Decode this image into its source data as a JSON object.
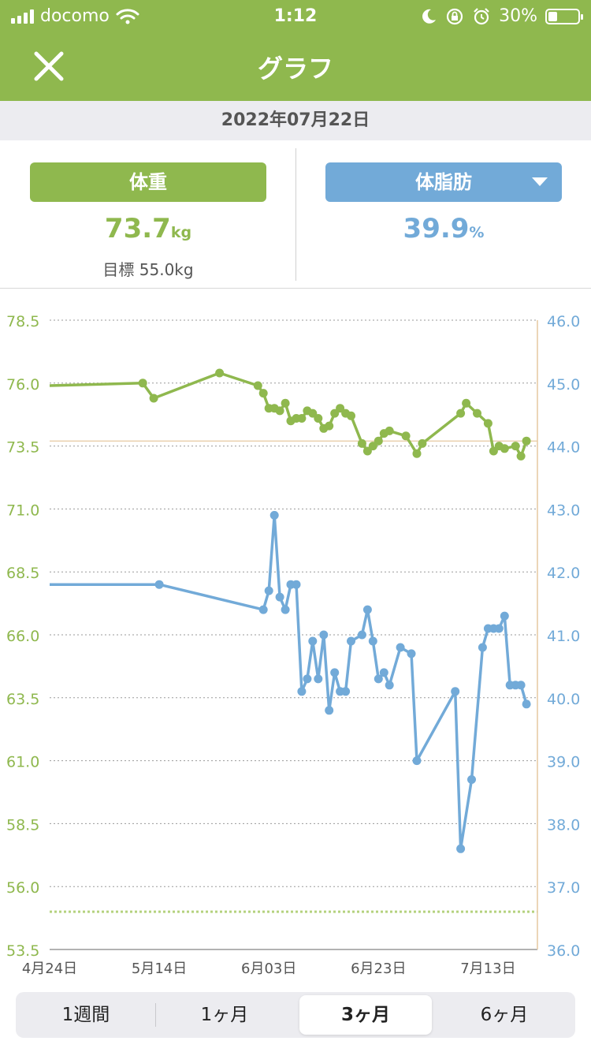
{
  "status_bar": {
    "carrier": "docomo",
    "time": "1:12",
    "battery": "30%",
    "icons": [
      "signal-icon",
      "wifi-icon",
      "moon-icon",
      "rotation-lock-icon",
      "alarm-icon",
      "battery-icon"
    ],
    "battery_level": 0.3
  },
  "header": {
    "title": "グラフ",
    "close_icon": "close-icon"
  },
  "date_bar": {
    "date": "2022年07月22日"
  },
  "summary": {
    "weight": {
      "label": "体重",
      "value": "73.7",
      "unit": "kg",
      "goal": "目標 55.0kg"
    },
    "fat": {
      "label": "体脂肪",
      "value": "39.9",
      "unit": "%",
      "dropdown_icon": "caret-down-icon"
    }
  },
  "colors": {
    "brand": "#8fb84e",
    "weight": "#8fb84e",
    "fat": "#72aad8",
    "marker": "#e6c9a0"
  },
  "chart_data": {
    "type": "line",
    "x_ticks": [
      "4月24日",
      "5月14日",
      "6月03日",
      "6月23日",
      "7月13日"
    ],
    "y_left": {
      "range": [
        53.5,
        78.5
      ],
      "ticks": [
        "78.5",
        "76.0",
        "73.5",
        "71.0",
        "68.5",
        "66.0",
        "63.5",
        "61.0",
        "58.5",
        "56.0",
        "53.5"
      ]
    },
    "y_right": {
      "range": [
        36.0,
        46.0
      ],
      "ticks": [
        "46.0",
        "45.0",
        "44.0",
        "43.0",
        "42.0",
        "41.0",
        "40.0",
        "39.0",
        "38.0",
        "37.0",
        "36.0"
      ]
    },
    "x_range": [
      "2022-04-24",
      "2022-07-22"
    ],
    "goal_weight": 55.0,
    "current_weight_line": 73.7,
    "current_date_line": "2022-07-22",
    "series": [
      {
        "key": "weight",
        "axis": "left",
        "points": [
          [
            "2022-04-24",
            75.9
          ],
          [
            "2022-05-11",
            76.0
          ],
          [
            "2022-05-13",
            75.4
          ],
          [
            "2022-05-25",
            76.4
          ],
          [
            "2022-06-01",
            75.9
          ],
          [
            "2022-06-02",
            75.6
          ],
          [
            "2022-06-03",
            75.0
          ],
          [
            "2022-06-04",
            75.0
          ],
          [
            "2022-06-05",
            74.9
          ],
          [
            "2022-06-06",
            75.2
          ],
          [
            "2022-06-07",
            74.5
          ],
          [
            "2022-06-08",
            74.6
          ],
          [
            "2022-06-09",
            74.6
          ],
          [
            "2022-06-10",
            74.9
          ],
          [
            "2022-06-11",
            74.8
          ],
          [
            "2022-06-12",
            74.6
          ],
          [
            "2022-06-13",
            74.2
          ],
          [
            "2022-06-14",
            74.3
          ],
          [
            "2022-06-15",
            74.8
          ],
          [
            "2022-06-16",
            75.0
          ],
          [
            "2022-06-17",
            74.8
          ],
          [
            "2022-06-18",
            74.7
          ],
          [
            "2022-06-20",
            73.6
          ],
          [
            "2022-06-21",
            73.3
          ],
          [
            "2022-06-22",
            73.5
          ],
          [
            "2022-06-23",
            73.7
          ],
          [
            "2022-06-24",
            74.0
          ],
          [
            "2022-06-25",
            74.1
          ],
          [
            "2022-06-28",
            73.9
          ],
          [
            "2022-06-30",
            73.2
          ],
          [
            "2022-07-01",
            73.6
          ],
          [
            "2022-07-08",
            74.8
          ],
          [
            "2022-07-09",
            75.2
          ],
          [
            "2022-07-11",
            74.8
          ],
          [
            "2022-07-13",
            74.4
          ],
          [
            "2022-07-14",
            73.3
          ],
          [
            "2022-07-15",
            73.5
          ],
          [
            "2022-07-16",
            73.4
          ],
          [
            "2022-07-18",
            73.5
          ],
          [
            "2022-07-19",
            73.1
          ],
          [
            "2022-07-20",
            73.7
          ]
        ]
      },
      {
        "key": "fat",
        "axis": "right",
        "points": [
          [
            "2022-04-24",
            41.8
          ],
          [
            "2022-05-14",
            41.8
          ],
          [
            "2022-06-02",
            41.4
          ],
          [
            "2022-06-03",
            41.7
          ],
          [
            "2022-06-04",
            42.9
          ],
          [
            "2022-06-05",
            41.6
          ],
          [
            "2022-06-06",
            41.4
          ],
          [
            "2022-06-07",
            41.8
          ],
          [
            "2022-06-08",
            41.8
          ],
          [
            "2022-06-09",
            40.1
          ],
          [
            "2022-06-10",
            40.3
          ],
          [
            "2022-06-11",
            40.9
          ],
          [
            "2022-06-12",
            40.3
          ],
          [
            "2022-06-13",
            41.0
          ],
          [
            "2022-06-14",
            39.8
          ],
          [
            "2022-06-15",
            40.4
          ],
          [
            "2022-06-16",
            40.1
          ],
          [
            "2022-06-17",
            40.1
          ],
          [
            "2022-06-18",
            40.9
          ],
          [
            "2022-06-20",
            41.0
          ],
          [
            "2022-06-21",
            41.4
          ],
          [
            "2022-06-22",
            40.9
          ],
          [
            "2022-06-23",
            40.3
          ],
          [
            "2022-06-24",
            40.4
          ],
          [
            "2022-06-25",
            40.2
          ],
          [
            "2022-06-27",
            40.8
          ],
          [
            "2022-06-29",
            40.7
          ],
          [
            "2022-06-30",
            39.0
          ],
          [
            "2022-07-07",
            40.1
          ],
          [
            "2022-07-08",
            37.6
          ],
          [
            "2022-07-10",
            38.7
          ],
          [
            "2022-07-12",
            40.8
          ],
          [
            "2022-07-13",
            41.1
          ],
          [
            "2022-07-14",
            41.1
          ],
          [
            "2022-07-15",
            41.1
          ],
          [
            "2022-07-16",
            41.3
          ],
          [
            "2022-07-17",
            40.2
          ],
          [
            "2022-07-18",
            40.2
          ],
          [
            "2022-07-19",
            40.2
          ],
          [
            "2022-07-20",
            39.9
          ]
        ]
      }
    ]
  },
  "period_tabs": [
    {
      "label": "1週間",
      "active": false
    },
    {
      "label": "1ヶ月",
      "active": false
    },
    {
      "label": "3ヶ月",
      "active": true
    },
    {
      "label": "6ヶ月",
      "active": false
    }
  ]
}
